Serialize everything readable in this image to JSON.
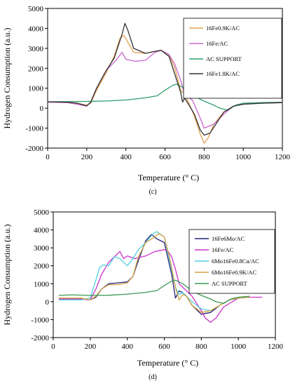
{
  "chart_data": [
    {
      "type": "line",
      "panel_label": "(c)",
      "xlabel": "Temperature (° C)",
      "ylabel": "Hydrogen Consumption (a.u.)",
      "xlim": [
        0,
        1200
      ],
      "ylim": [
        -2000,
        5000
      ],
      "xticks": [
        0,
        200,
        400,
        600,
        800,
        1000,
        1200
      ],
      "yticks": [
        -2000,
        -1000,
        0,
        1000,
        2000,
        3000,
        4000,
        5000
      ],
      "grid": false,
      "legend_position": "top-right",
      "series": [
        {
          "name": "16Fe0.9K/AC",
          "color": "#e0a050",
          "x": [
            0,
            100,
            150,
            200,
            220,
            250,
            300,
            340,
            370,
            390,
            410,
            440,
            500,
            550,
            580,
            620,
            650,
            680,
            700,
            720,
            750,
            780,
            800,
            820,
            850,
            900,
            950,
            1000,
            1100,
            1200
          ],
          "y": [
            300,
            280,
            250,
            150,
            250,
            900,
            1800,
            2600,
            3500,
            3650,
            3300,
            2800,
            2750,
            2850,
            2900,
            2700,
            2000,
            900,
            700,
            300,
            -400,
            -1300,
            -1750,
            -1500,
            -800,
            -200,
            100,
            200,
            250,
            280
          ]
        },
        {
          "name": "16Fe/AC",
          "color": "#cc66cc",
          "x": [
            0,
            100,
            150,
            200,
            220,
            250,
            300,
            350,
            380,
            400,
            450,
            500,
            550,
            580,
            620,
            650,
            680,
            700,
            740,
            780,
            800,
            850,
            900,
            950,
            1000,
            1100,
            1200
          ],
          "y": [
            300,
            280,
            200,
            100,
            300,
            1000,
            1900,
            2400,
            2800,
            2450,
            2350,
            2400,
            2800,
            2900,
            2700,
            2200,
            1400,
            700,
            400,
            -500,
            -1000,
            -800,
            -300,
            100,
            200,
            250,
            280
          ]
        },
        {
          "name": "AC SUPPORT",
          "color": "#2e9e6b",
          "x": [
            0,
            100,
            200,
            300,
            400,
            500,
            560,
            600,
            640,
            660,
            700,
            750,
            800,
            850,
            880,
            920,
            960,
            1000,
            1100,
            1200
          ],
          "y": [
            320,
            330,
            340,
            360,
            410,
            520,
            620,
            900,
            1150,
            1200,
            1000,
            600,
            350,
            150,
            0,
            -100,
            150,
            250,
            280,
            300
          ]
        },
        {
          "name": "16Fe1.8K/AC",
          "color": "#333333",
          "x": [
            0,
            100,
            150,
            200,
            220,
            250,
            300,
            340,
            360,
            380,
            395,
            410,
            440,
            500,
            550,
            580,
            620,
            650,
            680,
            690,
            700,
            720,
            750,
            780,
            800,
            830,
            860,
            900,
            950,
            1000,
            1100,
            1200
          ],
          "y": [
            320,
            300,
            250,
            120,
            300,
            1000,
            1900,
            2500,
            3100,
            3700,
            4250,
            3900,
            3000,
            2750,
            2850,
            2900,
            2600,
            1700,
            800,
            300,
            500,
            200,
            -300,
            -1100,
            -1350,
            -1250,
            -800,
            -200,
            100,
            200,
            250,
            280
          ]
        }
      ]
    },
    {
      "type": "line",
      "panel_label": "(d)",
      "xlabel": "Temperature (° C)",
      "ylabel": "Hydrogen Consumption (a.u.)",
      "xlim": [
        0,
        1200
      ],
      "ylim": [
        -2000,
        5000
      ],
      "xticks": [
        0,
        200,
        400,
        600,
        800,
        1000,
        1200
      ],
      "yticks": [
        -2000,
        -1000,
        0,
        1000,
        2000,
        3000,
        4000,
        5000
      ],
      "grid": false,
      "legend_position": "top-right",
      "series": [
        {
          "name": "16Fe6Mo/AC",
          "color": "#22227a",
          "x": [
            30,
            150,
            200,
            230,
            260,
            300,
            350,
            400,
            430,
            460,
            500,
            530,
            560,
            600,
            640,
            660,
            680,
            700,
            720,
            750,
            800,
            850,
            900,
            950,
            1000,
            1060
          ],
          "y": [
            150,
            150,
            100,
            250,
            700,
            1000,
            1050,
            1100,
            1400,
            2300,
            3400,
            3750,
            3500,
            3300,
            1500,
            200,
            600,
            500,
            300,
            -200,
            -700,
            -600,
            -200,
            100,
            200,
            250
          ]
        },
        {
          "name": "16Fe/AC",
          "color": "#cc33cc",
          "x": [
            30,
            150,
            200,
            230,
            260,
            300,
            330,
            360,
            380,
            400,
            440,
            500,
            550,
            600,
            620,
            640,
            660,
            680,
            700,
            750,
            800,
            820,
            850,
            880,
            920,
            1000,
            1050,
            1130
          ],
          "y": [
            150,
            150,
            100,
            700,
            1500,
            2200,
            2500,
            2800,
            2400,
            2550,
            2400,
            2550,
            2800,
            2900,
            2800,
            2500,
            1800,
            1000,
            800,
            300,
            -500,
            -900,
            -1150,
            -900,
            -300,
            200,
            250,
            250
          ]
        },
        {
          "name": "6Mo16Fe0.8Cu/AC",
          "color": "#4fd0e0",
          "x": [
            30,
            150,
            200,
            230,
            250,
            270,
            300,
            330,
            360,
            400,
            430,
            460,
            500,
            540,
            560,
            600,
            630,
            660,
            680,
            700,
            750,
            800,
            850,
            900,
            950,
            1000,
            1060
          ],
          "y": [
            100,
            100,
            200,
            1200,
            1900,
            2050,
            2000,
            2500,
            2400,
            2000,
            2400,
            2900,
            3300,
            3800,
            3900,
            3600,
            2200,
            800,
            400,
            500,
            0,
            -400,
            -500,
            -200,
            100,
            200,
            250
          ]
        },
        {
          "name": "6Mo16Fe0.9K/AC",
          "color": "#d4a040",
          "x": [
            30,
            150,
            200,
            230,
            260,
            300,
            350,
            400,
            430,
            460,
            500,
            540,
            570,
            600,
            630,
            660,
            680,
            700,
            720,
            750,
            800,
            850,
            900,
            950,
            1000,
            1060
          ],
          "y": [
            200,
            200,
            100,
            300,
            700,
            950,
            950,
            1050,
            1400,
            2500,
            3300,
            3550,
            3800,
            3600,
            2400,
            800,
            100,
            400,
            300,
            -200,
            -600,
            -500,
            -200,
            100,
            200,
            250
          ]
        },
        {
          "name": "AC SUPPORT",
          "color": "#3a9a55",
          "x": [
            30,
            100,
            200,
            300,
            400,
            500,
            560,
            600,
            640,
            660,
            700,
            750,
            800,
            850,
            880,
            920,
            960,
            1000,
            1060
          ],
          "y": [
            350,
            380,
            350,
            360,
            420,
            520,
            620,
            900,
            1150,
            1200,
            1000,
            600,
            350,
            150,
            0,
            -100,
            150,
            250,
            300
          ]
        }
      ]
    }
  ]
}
